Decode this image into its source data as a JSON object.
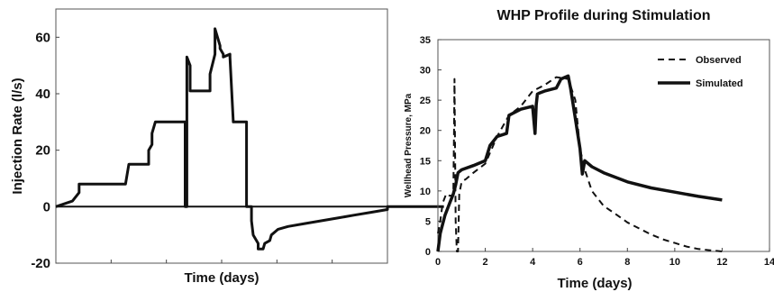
{
  "chart_data": [
    {
      "type": "line",
      "title": "",
      "xlabel": "Time (days)",
      "ylabel": "Injection Rate (l/s)",
      "xlim": [
        0,
        100
      ],
      "ylim": [
        -20,
        70
      ],
      "xticks": [],
      "yticks": [
        -20,
        0,
        20,
        40,
        60
      ],
      "grid": false,
      "series": [
        {
          "x": [
            0,
            5,
            5,
            7,
            7,
            21,
            21,
            22,
            22,
            28,
            28,
            29,
            29,
            30,
            30,
            39,
            39,
            39.5,
            39.5,
            40.5,
            40.5,
            46.5,
            46.5,
            48,
            48,
            49.5,
            49.5,
            50.5,
            50.5,
            52.5,
            52.5,
            53.5,
            53.5,
            57.5,
            57.5,
            59,
            59,
            59.5,
            61,
            61,
            62.5,
            63,
            64.5,
            65,
            67,
            70,
            75,
            80,
            85,
            90,
            95,
            100,
            100,
            117
          ],
          "y": [
            0,
            2,
            2,
            5,
            8,
            8,
            8,
            15,
            15,
            15,
            20,
            22,
            26,
            30,
            30,
            30,
            0,
            0,
            53,
            50,
            41,
            41,
            47,
            54,
            63,
            57,
            56,
            54,
            53,
            54,
            53,
            30,
            30,
            30,
            0,
            0,
            -5,
            -10,
            -13,
            -15,
            -15,
            -13,
            -12,
            -10,
            -8,
            -7,
            -6,
            -5,
            -4,
            -3,
            -2,
            -1,
            0,
            0
          ]
        },
        {
          "x": [
            0,
            117
          ],
          "y": [
            0,
            0
          ]
        }
      ]
    },
    {
      "type": "line",
      "title": "WHP Profile during Stimulation",
      "xlabel": "Time (days)",
      "ylabel": "Wellhead Pressure, MPa",
      "xlim": [
        0,
        14
      ],
      "ylim": [
        0,
        35
      ],
      "xticks": [
        0,
        2,
        4,
        6,
        8,
        10,
        12,
        14
      ],
      "yticks": [
        0,
        5,
        10,
        15,
        20,
        25,
        30,
        35
      ],
      "grid": false,
      "legend": "top-right",
      "series": [
        {
          "name": "Observed",
          "x": [
            0,
            0.1,
            0.2,
            0.35,
            0.5,
            0.65,
            0.68,
            0.7,
            0.75,
            0.8,
            0.85,
            0.9,
            1.0,
            1.2,
            1.5,
            2,
            2.5,
            3,
            3.5,
            4,
            4.5,
            5,
            5.5,
            5.8,
            6.0,
            6.2,
            6.5,
            7,
            7.5,
            8,
            8.5,
            9,
            9.5,
            10,
            10.5,
            11,
            11.5,
            12
          ],
          "y": [
            3,
            5,
            8,
            9.5,
            9.2,
            9.3,
            20,
            28.5,
            5,
            0,
            0,
            9.5,
            11.5,
            12,
            13,
            14.5,
            19,
            22.5,
            24,
            26.5,
            27.5,
            28.8,
            28.5,
            25,
            17,
            13.5,
            10,
            7.5,
            6.2,
            4.8,
            3.8,
            2.8,
            2.0,
            1.4,
            0.8,
            0.4,
            0.2,
            0
          ]
        },
        {
          "name": "Simulated",
          "x": [
            0,
            0.1,
            0.3,
            0.5,
            0.65,
            0.75,
            0.85,
            1.0,
            1.5,
            2,
            2.2,
            2.5,
            2.9,
            3.0,
            3.5,
            4.0,
            4.1,
            4.15,
            4.2,
            4.3,
            4.5,
            5.0,
            5.2,
            5.5,
            5.6,
            5.8,
            6.0,
            6.1,
            6.2,
            6.5,
            7,
            8,
            9,
            10,
            11,
            12
          ],
          "y": [
            0,
            3,
            6,
            8,
            9.5,
            11,
            13,
            13.5,
            14.2,
            15,
            17.5,
            19,
            19.5,
            22.5,
            23.5,
            24,
            19.5,
            24.2,
            26,
            26.2,
            26.5,
            27,
            28.5,
            29,
            27,
            22,
            17,
            12.8,
            15,
            14,
            13,
            11.5,
            10.5,
            9.8,
            9.1,
            8.5
          ]
        }
      ]
    }
  ]
}
